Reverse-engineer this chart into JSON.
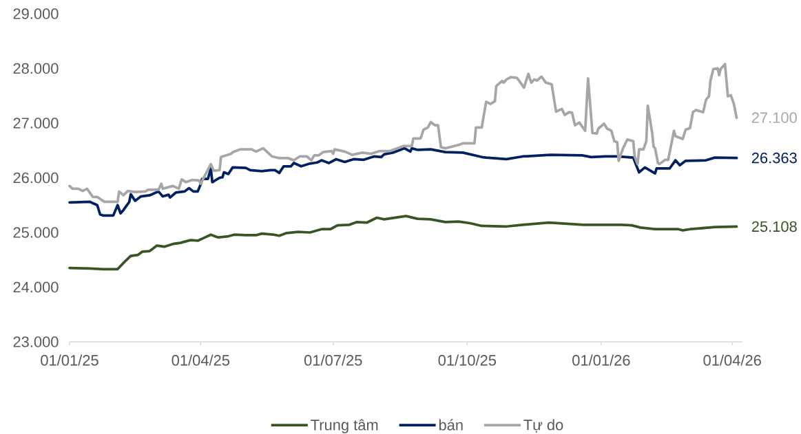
{
  "chart_data": {
    "type": "line",
    "legend": "bottom",
    "xlim": [
      "2025-01-01",
      "2026-04-08"
    ],
    "xticks": [
      {
        "value": "2025-01-01",
        "label": "01/01/25"
      },
      {
        "value": "2025-04-01",
        "label": "01/04/25"
      },
      {
        "value": "2025-07-01",
        "label": "01/07/25"
      },
      {
        "value": "2025-10-01",
        "label": "01/10/25"
      },
      {
        "value": "2026-01-01",
        "label": "01/01/26"
      },
      {
        "value": "2026-04-01",
        "label": "01/04/26"
      }
    ],
    "ylim": [
      23000,
      29000
    ],
    "yticks": [
      {
        "value": 23000,
        "label": "23.000"
      },
      {
        "value": 24000,
        "label": "24.000"
      },
      {
        "value": 25000,
        "label": "25.000"
      },
      {
        "value": 26000,
        "label": "26.000"
      },
      {
        "value": 27000,
        "label": "27.000"
      },
      {
        "value": 28000,
        "label": "28.000"
      },
      {
        "value": 29000,
        "label": "29.000"
      }
    ],
    "series": [
      {
        "name": "Trung tâm",
        "color": "#375623",
        "x": [
          "2025-01-01",
          "2025-01-15",
          "2025-01-24",
          "2025-02-03",
          "2025-02-08",
          "2025-02-12",
          "2025-02-17",
          "2025-02-20",
          "2025-02-25",
          "2025-03-02",
          "2025-03-07",
          "2025-03-13",
          "2025-03-18",
          "2025-03-25",
          "2025-03-30",
          "2025-04-04",
          "2025-04-08",
          "2025-04-13",
          "2025-04-20",
          "2025-04-24",
          "2025-05-02",
          "2025-05-09",
          "2025-05-13",
          "2025-05-21",
          "2025-05-25",
          "2025-05-30",
          "2025-06-07",
          "2025-06-15",
          "2025-06-23",
          "2025-06-29",
          "2025-07-04",
          "2025-07-12",
          "2025-07-17",
          "2025-07-24",
          "2025-07-31",
          "2025-08-05",
          "2025-08-12",
          "2025-08-20",
          "2025-08-28",
          "2025-09-06",
          "2025-09-16",
          "2025-09-25",
          "2025-10-03",
          "2025-10-11",
          "2025-10-28",
          "2025-11-08",
          "2025-11-26",
          "2025-12-20",
          "2026-01-04",
          "2026-01-15",
          "2026-01-22",
          "2026-01-28",
          "2026-02-07",
          "2026-02-23",
          "2026-02-26",
          "2026-03-03",
          "2026-03-16",
          "2026-03-20",
          "2026-04-04"
        ],
        "values": [
          24350,
          24340,
          24330,
          24330,
          24470,
          24570,
          24590,
          24650,
          24660,
          24760,
          24740,
          24790,
          24810,
          24860,
          24850,
          24910,
          24960,
          24910,
          24930,
          24960,
          24950,
          24950,
          24980,
          24960,
          24940,
          24990,
          25010,
          25000,
          25060,
          25060,
          25130,
          25140,
          25190,
          25180,
          25270,
          25240,
          25270,
          25300,
          25250,
          25240,
          25190,
          25200,
          25170,
          25120,
          25110,
          25140,
          25180,
          25140,
          25140,
          25140,
          25130,
          25090,
          25060,
          25060,
          25040,
          25060,
          25090,
          25100,
          25108
        ],
        "value_labels": [
          null,
          null,
          null,
          null,
          null,
          null,
          null,
          null,
          null,
          null,
          null,
          null,
          null,
          null,
          null,
          null,
          null,
          null,
          null,
          null,
          null,
          null,
          null,
          null,
          null,
          null,
          null,
          null,
          null,
          null,
          null,
          null,
          null,
          null,
          null,
          null,
          null,
          null,
          null,
          null,
          null,
          null,
          null,
          null,
          null,
          null,
          null,
          null,
          null,
          null,
          null,
          null,
          null,
          null,
          null,
          null,
          null,
          null,
          "25.108"
        ]
      },
      {
        "name": "bán",
        "color": "#002060",
        "x": [
          "2025-01-01",
          "2025-01-15",
          "2025-01-20",
          "2025-01-22",
          "2025-01-24",
          "2025-01-31",
          "2025-02-03",
          "2025-02-05",
          "2025-02-07",
          "2025-02-11",
          "2025-02-12",
          "2025-02-15",
          "2025-02-19",
          "2025-02-25",
          "2025-03-03",
          "2025-03-06",
          "2025-03-10",
          "2025-03-11",
          "2025-03-15",
          "2025-03-21",
          "2025-03-24",
          "2025-03-27",
          "2025-03-30",
          "2025-04-01",
          "2025-04-02",
          "2025-04-06",
          "2025-04-08",
          "2025-04-09",
          "2025-04-14",
          "2025-04-16",
          "2025-04-17",
          "2025-04-20",
          "2025-04-23",
          "2025-05-02",
          "2025-05-05",
          "2025-05-13",
          "2025-05-19",
          "2025-05-22",
          "2025-05-25",
          "2025-05-28",
          "2025-06-02",
          "2025-06-04",
          "2025-06-09",
          "2025-06-15",
          "2025-06-20",
          "2025-06-23",
          "2025-06-28",
          "2025-07-03",
          "2025-07-09",
          "2025-07-15",
          "2025-07-22",
          "2025-07-29",
          "2025-08-03",
          "2025-08-05",
          "2025-08-11",
          "2025-08-19",
          "2025-08-23",
          "2025-08-24",
          "2025-08-28",
          "2025-09-06",
          "2025-09-16",
          "2025-09-28",
          "2025-10-11",
          "2025-10-14",
          "2025-10-28",
          "2025-11-08",
          "2025-11-27",
          "2025-12-19",
          "2025-12-25",
          "2026-01-04",
          "2026-01-12",
          "2026-01-23",
          "2026-01-27",
          "2026-01-31",
          "2026-02-07",
          "2026-02-08",
          "2026-02-17",
          "2026-02-21",
          "2026-02-24",
          "2026-02-28",
          "2026-03-14",
          "2026-03-20",
          "2026-04-04"
        ],
        "values": [
          25550,
          25560,
          25500,
          25330,
          25310,
          25310,
          25500,
          25350,
          25410,
          25560,
          25700,
          25580,
          25660,
          25680,
          25750,
          25660,
          25690,
          25640,
          25730,
          25750,
          25810,
          25750,
          25750,
          25880,
          25980,
          25980,
          26170,
          25920,
          26000,
          26010,
          26100,
          26070,
          26190,
          26180,
          26140,
          26120,
          26140,
          26140,
          26090,
          26210,
          26210,
          26270,
          26210,
          26260,
          26280,
          26320,
          26270,
          26340,
          26290,
          26340,
          26330,
          26390,
          26380,
          26430,
          26460,
          26540,
          26480,
          26540,
          26510,
          26520,
          26470,
          26460,
          26380,
          26370,
          26340,
          26390,
          26420,
          26410,
          26380,
          26390,
          26390,
          26370,
          26100,
          26190,
          26080,
          26170,
          26170,
          26320,
          26230,
          26310,
          26320,
          26370,
          26363
        ],
        "value_labels": [
          null,
          null,
          null,
          null,
          null,
          null,
          null,
          null,
          null,
          null,
          null,
          null,
          null,
          null,
          null,
          null,
          null,
          null,
          null,
          null,
          null,
          null,
          null,
          null,
          null,
          null,
          null,
          null,
          null,
          null,
          null,
          null,
          null,
          null,
          null,
          null,
          null,
          null,
          null,
          null,
          null,
          null,
          null,
          null,
          null,
          null,
          null,
          null,
          null,
          null,
          null,
          null,
          null,
          null,
          null,
          null,
          null,
          null,
          null,
          null,
          null,
          null,
          null,
          null,
          null,
          null,
          null,
          null,
          null,
          null,
          null,
          null,
          null,
          null,
          null,
          null,
          null,
          null,
          null,
          null,
          null,
          null,
          "26.363"
        ]
      },
      {
        "name": "Tự do",
        "color": "#a6a6a6",
        "x": [
          "2025-01-01",
          "2025-01-03",
          "2025-01-07",
          "2025-01-10",
          "2025-01-13",
          "2025-01-17",
          "2025-01-20",
          "2025-01-25",
          "2025-02-03",
          "2025-02-04",
          "2025-02-07",
          "2025-02-10",
          "2025-02-15",
          "2025-02-22",
          "2025-02-24",
          "2025-03-03",
          "2025-03-05",
          "2025-03-06",
          "2025-03-13",
          "2025-03-17",
          "2025-03-19",
          "2025-03-22",
          "2025-03-26",
          "2025-03-31",
          "2025-04-01",
          "2025-04-05",
          "2025-04-08",
          "2025-04-10",
          "2025-04-14",
          "2025-04-15",
          "2025-04-22",
          "2025-04-23",
          "2025-04-28",
          "2025-05-06",
          "2025-05-09",
          "2025-05-14",
          "2025-05-18",
          "2025-05-20",
          "2025-05-25",
          "2025-05-31",
          "2025-06-04",
          "2025-06-08",
          "2025-06-13",
          "2025-06-16",
          "2025-06-18",
          "2025-06-21",
          "2025-06-24",
          "2025-06-30",
          "2025-07-01",
          "2025-07-02",
          "2025-07-09",
          "2025-07-14",
          "2025-07-21",
          "2025-07-27",
          "2025-08-02",
          "2025-08-09",
          "2025-08-18",
          "2025-08-24",
          "2025-08-25",
          "2025-08-30",
          "2025-09-01",
          "2025-09-04",
          "2025-09-06",
          "2025-09-09",
          "2025-09-11",
          "2025-09-13",
          "2025-09-16",
          "2025-09-22",
          "2025-09-25",
          "2025-09-28",
          "2025-10-06",
          "2025-10-07",
          "2025-10-11",
          "2025-10-14",
          "2025-10-17",
          "2025-10-20",
          "2025-10-21",
          "2025-10-25",
          "2025-10-26",
          "2025-10-28",
          "2025-10-31",
          "2025-11-04",
          "2025-11-05",
          "2025-11-09",
          "2025-11-12",
          "2025-11-14",
          "2025-11-16",
          "2025-11-18",
          "2025-11-21",
          "2025-11-24",
          "2025-11-28",
          "2025-12-01",
          "2025-12-05",
          "2025-12-07",
          "2025-12-10",
          "2025-12-12",
          "2025-12-14",
          "2025-12-17",
          "2025-12-21",
          "2025-12-23",
          "2025-12-26",
          "2025-12-29",
          "2025-12-30",
          "2026-01-03",
          "2026-01-05",
          "2026-01-08",
          "2026-01-10",
          "2026-01-12",
          "2026-01-13",
          "2026-01-16",
          "2026-01-18",
          "2026-01-19",
          "2026-01-23",
          "2026-01-24",
          "2026-01-26",
          "2026-01-27",
          "2026-01-30",
          "2026-02-01",
          "2026-02-02",
          "2026-02-05",
          "2026-02-06",
          "2026-02-07",
          "2026-02-09",
          "2026-02-10",
          "2026-02-14",
          "2026-02-16",
          "2026-02-20",
          "2026-02-21",
          "2026-02-26",
          "2026-02-28",
          "2026-03-03",
          "2026-03-05",
          "2026-03-07",
          "2026-03-12",
          "2026-03-14",
          "2026-03-16",
          "2026-03-17",
          "2026-03-19",
          "2026-03-22",
          "2026-03-23",
          "2026-03-24",
          "2026-03-27",
          "2026-03-29",
          "2026-03-31",
          "2026-04-02",
          "2026-04-04"
        ],
        "values": [
          25850,
          25800,
          25800,
          25760,
          25800,
          25650,
          25650,
          25560,
          25560,
          25750,
          25680,
          25760,
          25740,
          25750,
          25780,
          25780,
          25890,
          25800,
          25850,
          25800,
          25970,
          25920,
          25960,
          25950,
          25890,
          26100,
          26250,
          26130,
          26140,
          26380,
          26440,
          26470,
          26520,
          26520,
          26480,
          26540,
          26440,
          26390,
          26360,
          26360,
          26320,
          26390,
          26390,
          26320,
          26410,
          26410,
          26470,
          26490,
          26440,
          26520,
          26480,
          26420,
          26460,
          26440,
          26490,
          26490,
          26580,
          26580,
          26720,
          26720,
          26880,
          26920,
          27020,
          26960,
          26960,
          26560,
          26540,
          26580,
          26600,
          26630,
          26630,
          26920,
          26920,
          27390,
          27350,
          27400,
          27680,
          27770,
          27740,
          27800,
          27840,
          27830,
          27800,
          27650,
          27900,
          27740,
          27800,
          27780,
          27850,
          27740,
          27710,
          27210,
          27260,
          27150,
          27200,
          27190,
          26960,
          27010,
          26860,
          27820,
          26820,
          26810,
          26900,
          26990,
          26900,
          26860,
          26670,
          26650,
          26310,
          26540,
          26650,
          26700,
          26670,
          26390,
          26250,
          26520,
          26520,
          26670,
          27320,
          26820,
          26570,
          26540,
          26270,
          26250,
          26330,
          26330,
          26860,
          26760,
          26710,
          26880,
          26910,
          27200,
          27240,
          27200,
          27430,
          27490,
          27770,
          27990,
          28000,
          27880,
          27990,
          28080,
          27490,
          27510,
          27360,
          27100
        ],
        "value_labels": [
          null,
          null,
          null,
          null,
          null,
          null,
          null,
          null,
          null,
          null,
          null,
          null,
          null,
          null,
          null,
          null,
          null,
          null,
          null,
          null,
          null,
          null,
          null,
          null,
          null,
          null,
          null,
          null,
          null,
          null,
          null,
          null,
          null,
          null,
          null,
          null,
          null,
          null,
          null,
          null,
          null,
          null,
          null,
          null,
          null,
          null,
          null,
          null,
          null,
          null,
          null,
          null,
          null,
          null,
          null,
          null,
          null,
          null,
          null,
          null,
          null,
          null,
          null,
          null,
          null,
          null,
          null,
          null,
          null,
          null,
          null,
          null,
          null,
          null,
          null,
          null,
          null,
          null,
          null,
          null,
          null,
          null,
          null,
          null,
          null,
          null,
          null,
          null,
          null,
          null,
          null,
          null,
          null,
          null,
          null,
          null,
          null,
          null,
          null,
          null,
          null,
          null,
          null,
          null,
          null,
          null,
          null,
          null,
          null,
          null,
          null,
          null,
          null,
          null,
          null,
          null,
          null,
          null,
          null,
          null,
          null,
          null,
          null,
          null,
          null,
          null,
          null,
          null,
          null,
          null,
          null,
          null,
          null,
          null,
          null,
          null,
          null,
          null,
          null,
          null,
          null,
          null,
          null,
          null,
          null,
          "27.100"
        ]
      }
    ]
  }
}
